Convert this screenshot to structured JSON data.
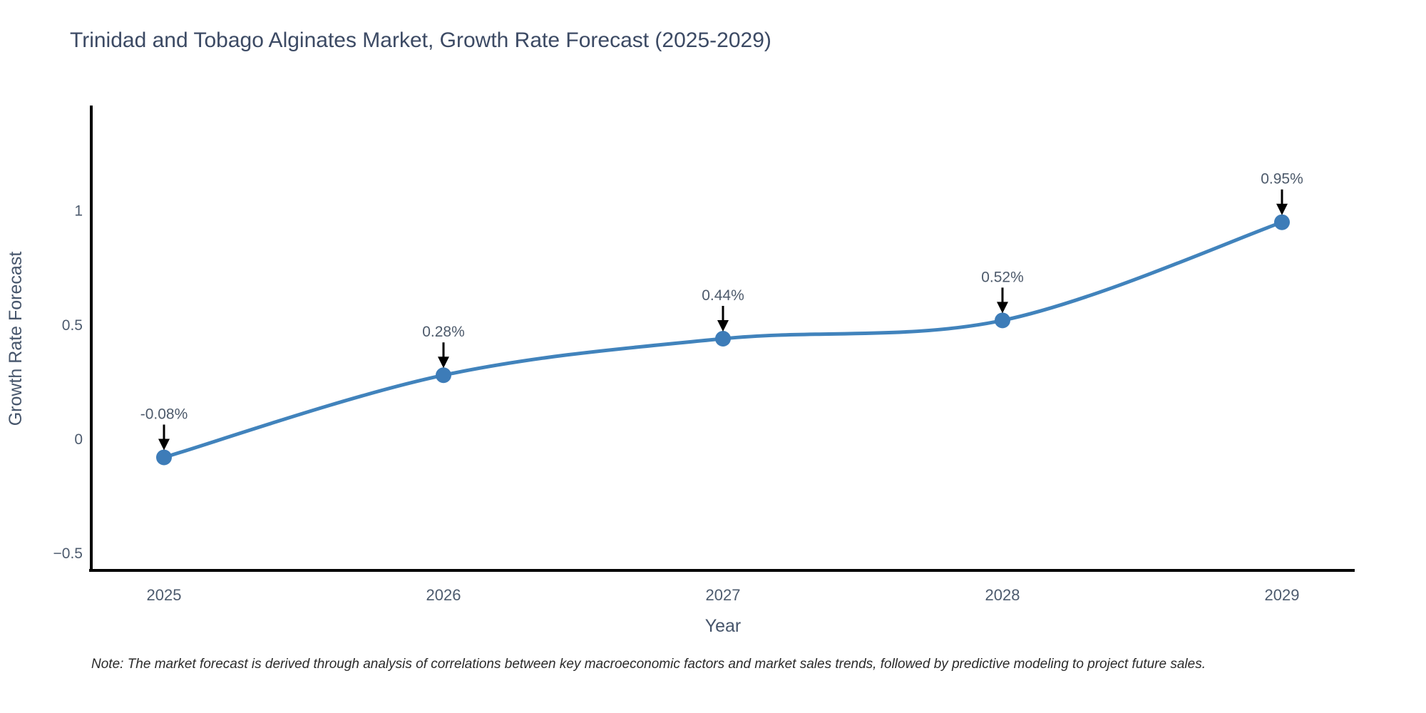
{
  "header": {
    "title": "Trinidad and Tobago Alginates Market, Growth Rate Forecast (2025-2029)",
    "title_color": "#3c4a64"
  },
  "chart_data": {
    "type": "line",
    "title": "Trinidad and Tobago Alginates Market, Growth Rate Forecast (2025-2029)",
    "categories": [
      "2025",
      "2026",
      "2027",
      "2028",
      "2029"
    ],
    "series": [
      {
        "name": "Growth Rate Forecast",
        "values": [
          -0.08,
          0.28,
          0.44,
          0.52,
          0.95
        ]
      }
    ],
    "point_labels": [
      "-0.08%",
      "0.28%",
      "0.44%",
      "0.52%",
      "0.95%"
    ],
    "xlabel": "Year",
    "ylabel": "Growth Rate Forecast",
    "yticks": [
      -0.5,
      0,
      0.5,
      1
    ],
    "ylim": [
      -0.575,
      1.455
    ],
    "grid": false,
    "legend": "none",
    "line_style": "spline",
    "line_color": "#4183bc",
    "marker_color": "#3d7cb8",
    "axis_color": "#000000",
    "annotation_arrow_color": "#000000"
  },
  "footer": {
    "note": "Note: The market forecast is derived through analysis of correlations between key macroeconomic factors and market sales trends, followed by predictive modeling to project future sales."
  }
}
